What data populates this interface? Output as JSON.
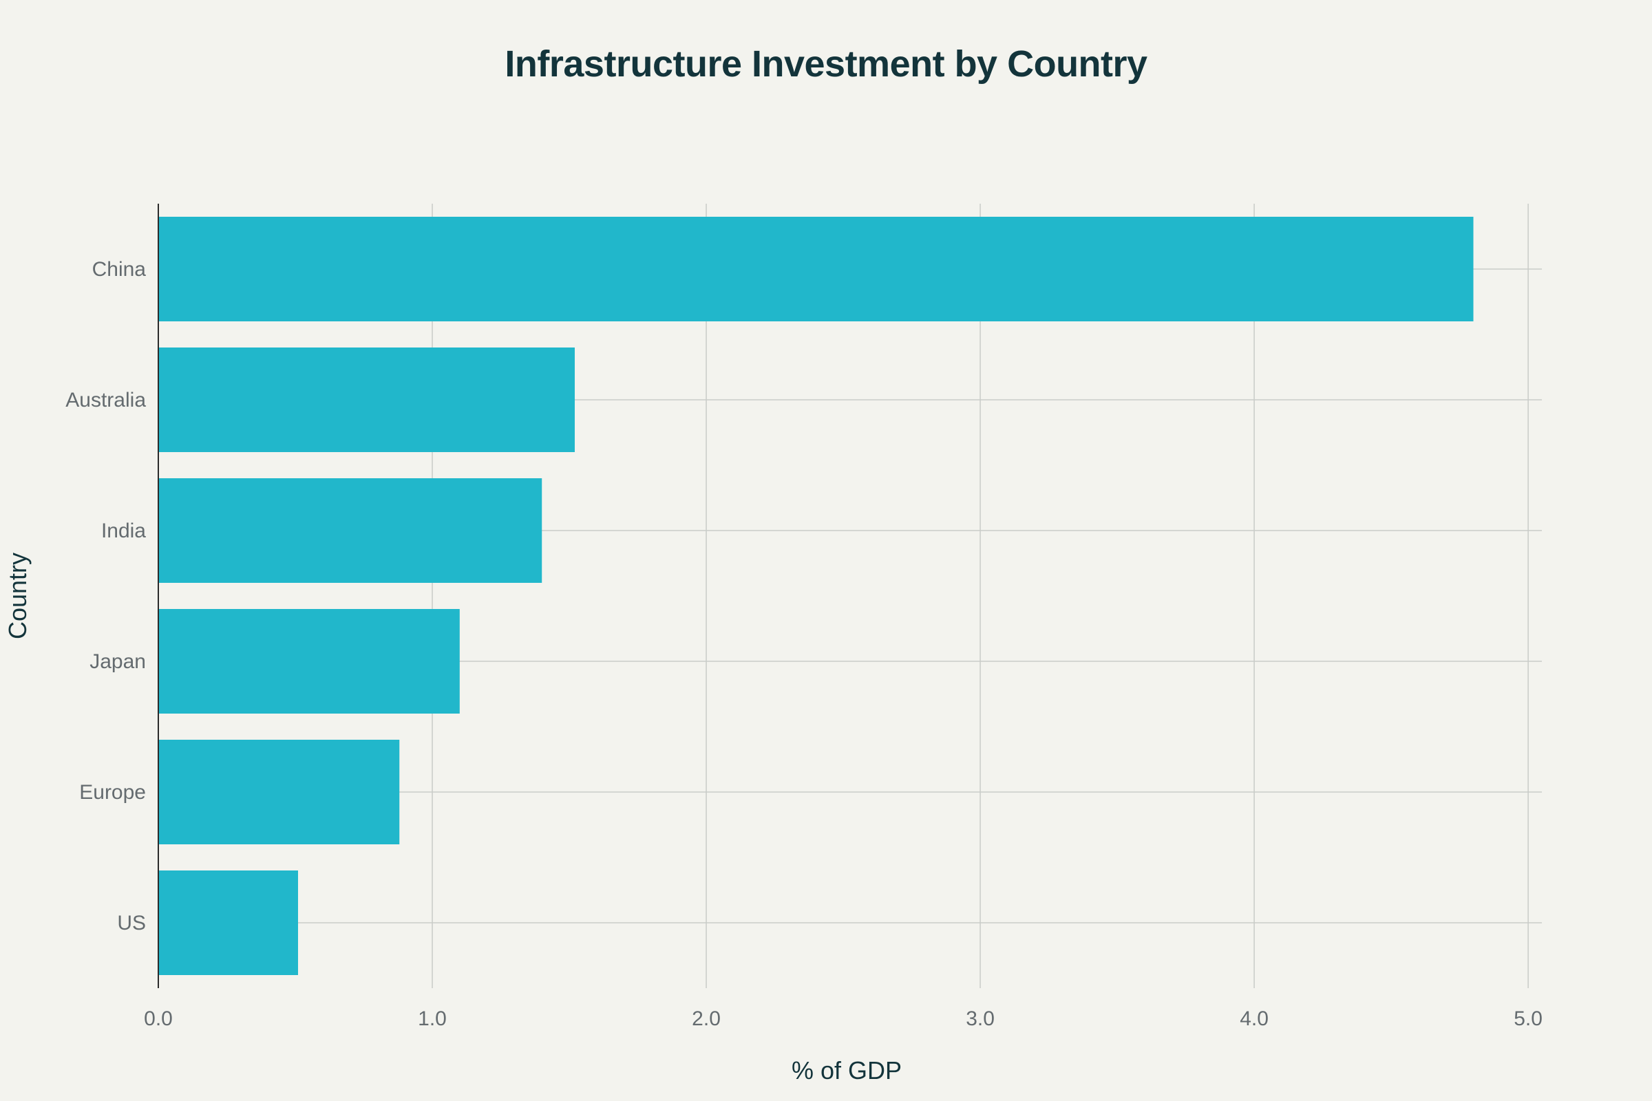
{
  "chart_data": {
    "type": "bar",
    "orientation": "horizontal",
    "title": "Infrastructure Investment by Country",
    "xlabel": "% of GDP",
    "ylabel": "Country",
    "categories": [
      "China",
      "Australia",
      "India",
      "Japan",
      "Europe",
      "US"
    ],
    "values": [
      4.8,
      1.52,
      1.4,
      1.1,
      0.88,
      0.51
    ],
    "xlim": [
      0,
      5.05
    ],
    "xticks": [
      "0.0",
      "1.0",
      "2.0",
      "3.0",
      "4.0",
      "5.0"
    ],
    "grid": true,
    "bar_color": "#21b7cb"
  },
  "colors": {
    "background": "#f3f3ee",
    "title": "#13343b",
    "grid": "#c9ccc8",
    "axis": "#2b2b2b",
    "tick_text": "#646b6f"
  }
}
